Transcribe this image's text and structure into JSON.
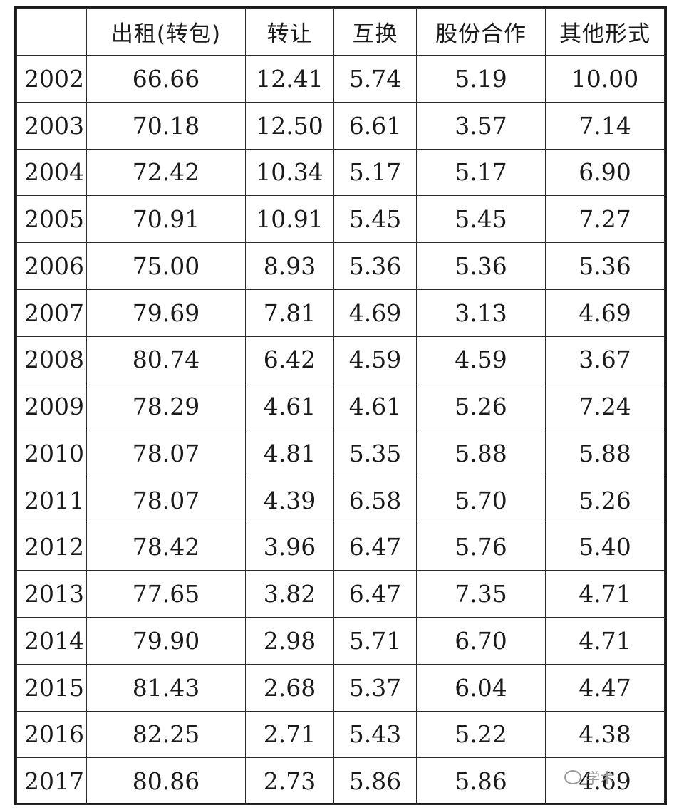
{
  "table": {
    "headers": [
      "",
      "出租(转包)",
      "转让",
      "互换",
      "股份合作",
      "其他形式"
    ],
    "rows": [
      [
        "2002",
        "66.66",
        "12.41",
        "5.74",
        "5.19",
        "10.00"
      ],
      [
        "2003",
        "70.18",
        "12.50",
        "6.61",
        "3.57",
        "7.14"
      ],
      [
        "2004",
        "72.42",
        "10.34",
        "5.17",
        "5.17",
        "6.90"
      ],
      [
        "2005",
        "70.91",
        "10.91",
        "5.45",
        "5.45",
        "7.27"
      ],
      [
        "2006",
        "75.00",
        "8.93",
        "5.36",
        "5.36",
        "5.36"
      ],
      [
        "2007",
        "79.69",
        "7.81",
        "4.69",
        "3.13",
        "4.69"
      ],
      [
        "2008",
        "80.74",
        "6.42",
        "4.59",
        "4.59",
        "3.67"
      ],
      [
        "2009",
        "78.29",
        "4.61",
        "4.61",
        "5.26",
        "7.24"
      ],
      [
        "2010",
        "78.07",
        "4.81",
        "5.35",
        "5.88",
        "5.88"
      ],
      [
        "2011",
        "78.07",
        "4.39",
        "6.58",
        "5.70",
        "5.26"
      ],
      [
        "2012",
        "78.42",
        "3.96",
        "6.47",
        "5.76",
        "5.40"
      ],
      [
        "2013",
        "77.65",
        "3.82",
        "6.47",
        "7.35",
        "4.71"
      ],
      [
        "2014",
        "79.90",
        "2.98",
        "5.71",
        "6.70",
        "4.71"
      ],
      [
        "2015",
        "81.43",
        "2.68",
        "5.37",
        "6.04",
        "4.47"
      ],
      [
        "2016",
        "82.25",
        "2.71",
        "5.43",
        "5.22",
        "4.38"
      ],
      [
        "2017",
        "80.86",
        "2.73",
        "5.86",
        "5.86",
        "4.69"
      ]
    ]
  },
  "watermark": {
    "icon": "wechat-icon",
    "text": "学术"
  }
}
